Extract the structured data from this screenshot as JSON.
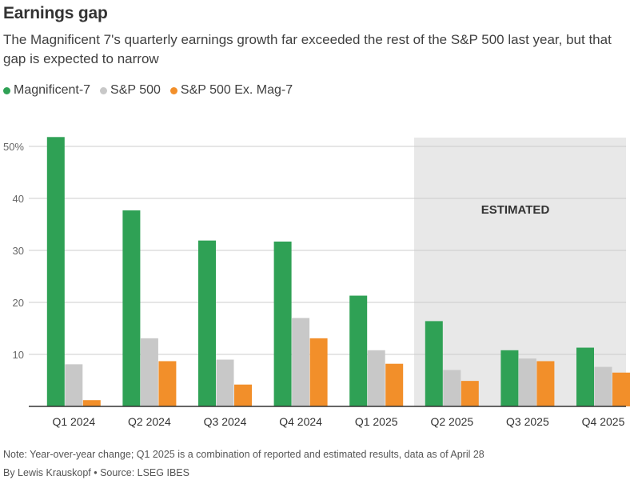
{
  "header": {
    "title": "Earnings gap",
    "subtitle": "The Magnificent 7's quarterly earnings growth far exceeded the rest of the S&P 500 last year, but that gap is expected to narrow"
  },
  "footer": {
    "note": "Note: Year-over-year change; Q1 2025 is a combination of reported and estimated results, data as of April 28",
    "byline": "By Lewis Krauskopf • Source: LSEG IBES"
  },
  "colors": {
    "mag7": "#2fa155",
    "sp500": "#c8c8c8",
    "ex_mag7": "#f28f2a",
    "estimated_bg": "#e8e8e8",
    "grid": "#cccccc",
    "axis": "#333333"
  },
  "chart_data": {
    "type": "bar",
    "title": "Earnings gap",
    "categories": [
      "Q1 2024",
      "Q2 2024",
      "Q3 2024",
      "Q4 2024",
      "Q1 2025",
      "Q2 2025",
      "Q3 2025",
      "Q4 2025"
    ],
    "series": [
      {
        "name": "Magnificent-7",
        "values": [
          51.8,
          37.7,
          31.9,
          31.7,
          21.3,
          16.4,
          10.8,
          11.3
        ]
      },
      {
        "name": "S&P 500",
        "values": [
          8.1,
          13.1,
          9.0,
          17.0,
          10.8,
          7.0,
          9.2,
          7.6
        ]
      },
      {
        "name": "S&P 500 Ex. Mag-7",
        "values": [
          1.2,
          8.7,
          4.2,
          13.1,
          8.2,
          4.9,
          8.7,
          6.5
        ]
      }
    ],
    "ylim": [
      0,
      50
    ],
    "yticks": [
      10,
      20,
      30,
      40,
      50
    ],
    "ytick_labels": [
      "10",
      "20",
      "30",
      "40",
      "50%"
    ],
    "xlabel": "",
    "ylabel": "",
    "grid": true,
    "legend_position": "top-left",
    "estimated_region": {
      "label": "ESTIMATED",
      "from_category": "Q2 2025",
      "to_category": "Q4 2025"
    }
  }
}
